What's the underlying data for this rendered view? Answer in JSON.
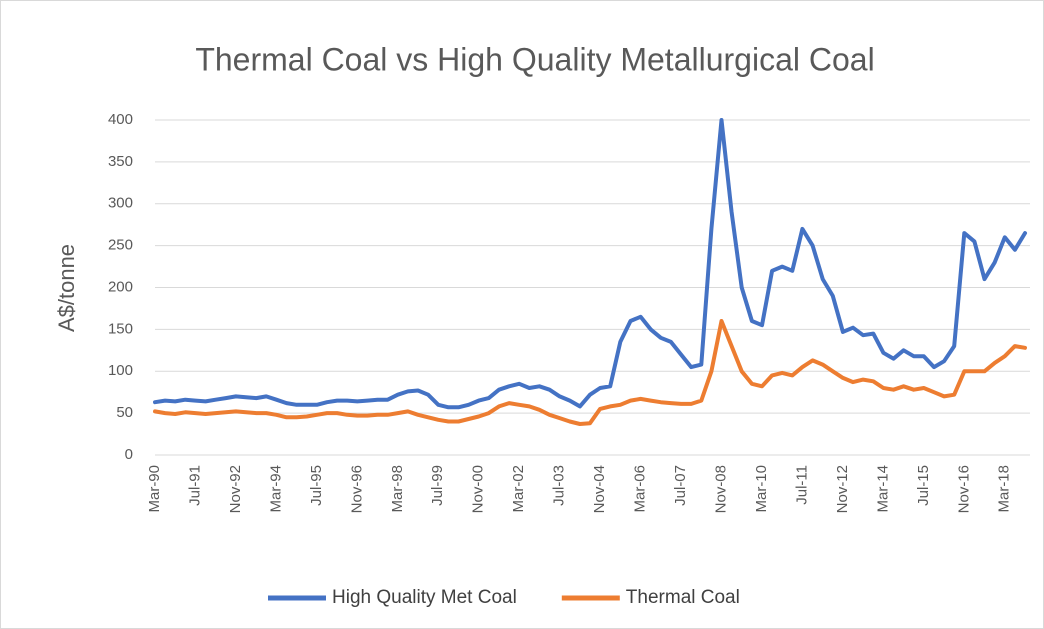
{
  "chart_data": {
    "type": "line",
    "title": "Thermal Coal vs High Quality Metallurgical Coal",
    "y_label": "A$/tonne",
    "categories": [
      "Mar-90",
      null,
      null,
      null,
      "Jul-91",
      null,
      null,
      null,
      "Nov-92",
      null,
      null,
      null,
      "Mar-94",
      null,
      null,
      null,
      "Jul-95",
      null,
      null,
      null,
      "Nov-96",
      null,
      null,
      null,
      "Mar-98",
      null,
      null,
      null,
      "Jul-99",
      null,
      null,
      null,
      "Nov-00",
      null,
      null,
      null,
      "Mar-02",
      null,
      null,
      null,
      "Jul-03",
      null,
      null,
      null,
      "Nov-04",
      null,
      null,
      null,
      "Mar-06",
      null,
      null,
      null,
      "Jul-07",
      null,
      null,
      null,
      "Nov-08",
      null,
      null,
      null,
      "Mar-10",
      null,
      null,
      null,
      "Jul-11",
      null,
      null,
      null,
      "Nov-12",
      null,
      null,
      null,
      "Mar-14",
      null,
      null,
      null,
      "Jul-15",
      null,
      null,
      null,
      "Nov-16",
      null,
      null,
      null,
      "Mar-18",
      null,
      null
    ],
    "series": [
      {
        "name": "High Quality Met Coal",
        "color": "#4472c4",
        "values": [
          63,
          65,
          64,
          66,
          65,
          64,
          66,
          68,
          70,
          69,
          68,
          70,
          66,
          62,
          60,
          60,
          60,
          63,
          65,
          65,
          64,
          65,
          66,
          66,
          72,
          76,
          77,
          72,
          60,
          57,
          57,
          60,
          65,
          68,
          78,
          82,
          85,
          80,
          82,
          78,
          70,
          65,
          58,
          72,
          80,
          82,
          135,
          160,
          165,
          150,
          140,
          135,
          120,
          105,
          108,
          270,
          400,
          290,
          200,
          160,
          155,
          220,
          225,
          220,
          270,
          250,
          210,
          190,
          147,
          152,
          143,
          145,
          122,
          115,
          125,
          118,
          118,
          105,
          112,
          130,
          265,
          255,
          210,
          230,
          260,
          245,
          265
        ]
      },
      {
        "name": "Thermal Coal",
        "color": "#ed7d31",
        "values": [
          52,
          50,
          49,
          51,
          50,
          49,
          50,
          51,
          52,
          51,
          50,
          50,
          48,
          45,
          45,
          46,
          48,
          50,
          50,
          48,
          47,
          47,
          48,
          48,
          50,
          52,
          48,
          45,
          42,
          40,
          40,
          43,
          46,
          50,
          58,
          62,
          60,
          58,
          54,
          48,
          44,
          40,
          37,
          38,
          55,
          58,
          60,
          65,
          67,
          65,
          63,
          62,
          61,
          61,
          65,
          100,
          160,
          130,
          100,
          85,
          82,
          95,
          98,
          95,
          105,
          113,
          108,
          100,
          92,
          87,
          90,
          88,
          80,
          78,
          82,
          78,
          80,
          75,
          70,
          72,
          100,
          100,
          100,
          110,
          118,
          130,
          128
        ]
      }
    ],
    "ylim": [
      0,
      400
    ],
    "yticks": [
      0,
      50,
      100,
      150,
      200,
      250,
      300,
      350,
      400
    ],
    "grid": true,
    "legend": "bottom"
  }
}
